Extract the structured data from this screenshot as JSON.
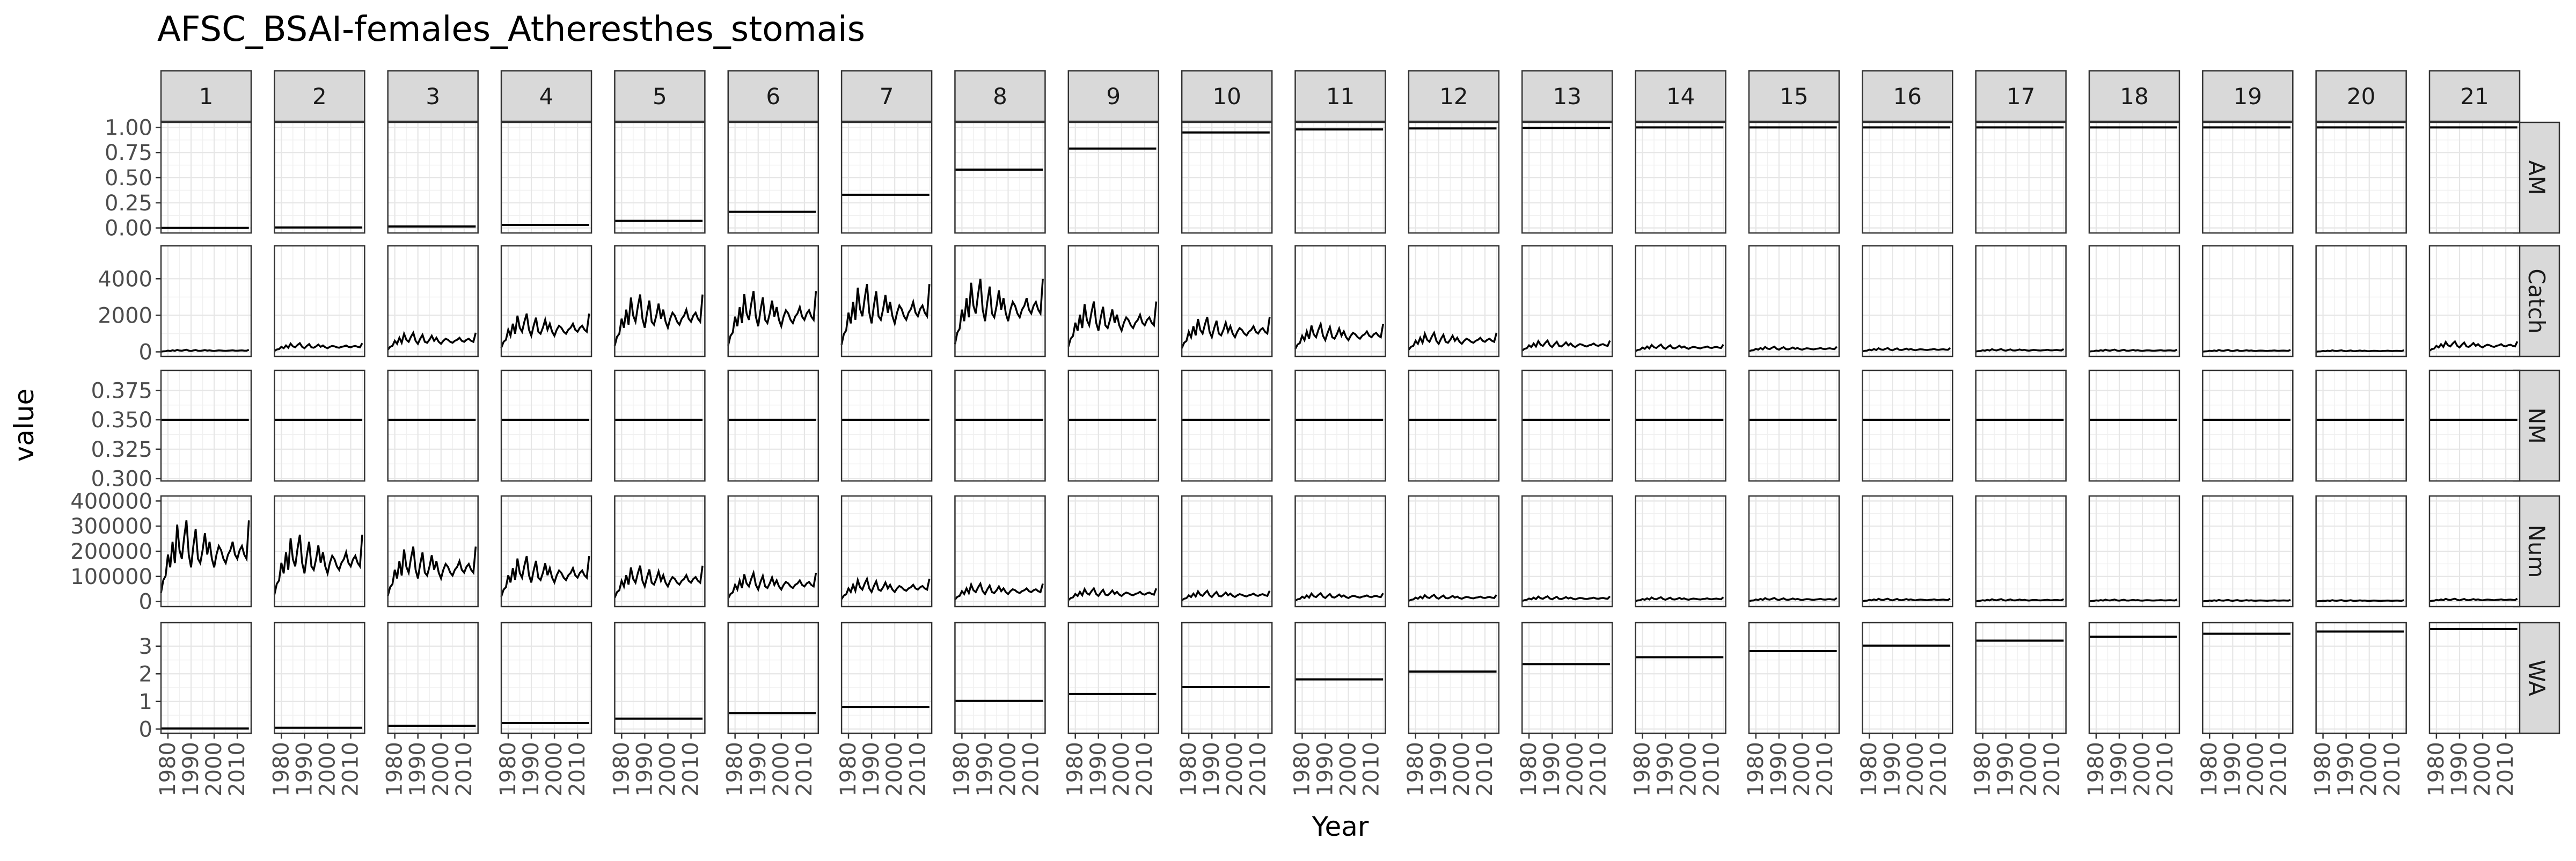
{
  "chart_data": {
    "type": "line",
    "title": "AFSC_BSAI-females_Atheresthes_stomais",
    "xlabel": "Year",
    "ylabel": "value",
    "x_range": [
      1977,
      2016
    ],
    "x_ticks": [
      1980,
      1990,
      2000,
      2010
    ],
    "grid": true,
    "facets": {
      "columns": [
        "1",
        "2",
        "3",
        "4",
        "5",
        "6",
        "7",
        "8",
        "9",
        "10",
        "11",
        "12",
        "13",
        "14",
        "15",
        "16",
        "17",
        "18",
        "19",
        "20",
        "21"
      ],
      "rows": [
        {
          "name": "AM",
          "kind": "const",
          "ylim": [
            -0.05,
            1.05
          ],
          "ticks": [
            0,
            0.25,
            0.5,
            0.75,
            1
          ],
          "tick_labels": [
            "0.00",
            "0.25",
            "0.50",
            "0.75",
            "1.00"
          ],
          "values": [
            0.0,
            0.005,
            0.015,
            0.03,
            0.07,
            0.16,
            0.33,
            0.58,
            0.79,
            0.95,
            0.98,
            0.99,
            0.995,
            1.0,
            1.0,
            1.0,
            1.0,
            1.0,
            1.0,
            1.0,
            1.0
          ]
        },
        {
          "name": "Catch",
          "kind": "series",
          "ylim": [
            -250,
            5800
          ],
          "ticks": [
            0,
            2000,
            4000
          ],
          "tick_labels": [
            "0",
            "2000",
            "4000"
          ],
          "scale": [
            120,
            500,
            1100,
            2200,
            3300,
            3500,
            3900,
            4200,
            2900,
            2000,
            1600,
            1100,
            650,
            420,
            300,
            220,
            160,
            130,
            110,
            90,
            600
          ]
        },
        {
          "name": "NM",
          "kind": "const",
          "ylim": [
            0.298,
            0.392
          ],
          "ticks": [
            0.3,
            0.325,
            0.35,
            0.375
          ],
          "tick_labels": [
            "0.300",
            "0.325",
            "0.350",
            "0.375"
          ],
          "values": [
            0.35,
            0.35,
            0.35,
            0.35,
            0.35,
            0.35,
            0.35,
            0.35,
            0.35,
            0.35,
            0.35,
            0.35,
            0.35,
            0.35,
            0.35,
            0.35,
            0.35,
            0.35,
            0.35,
            0.35,
            0.35
          ]
        },
        {
          "name": "Num",
          "kind": "series",
          "ylim": [
            -20000,
            420000
          ],
          "ticks": [
            0,
            100000,
            200000,
            300000,
            400000
          ],
          "tick_labels": [
            "0",
            "100000",
            "200000",
            "300000",
            "400000"
          ],
          "scale": [
            340000,
            280000,
            230000,
            190000,
            150000,
            120000,
            95000,
            75000,
            55000,
            45000,
            35000,
            28000,
            22000,
            18000,
            15000,
            12000,
            10000,
            8500,
            7000,
            6000,
            12000
          ]
        },
        {
          "name": "WA",
          "kind": "const",
          "ylim": [
            -0.15,
            3.85
          ],
          "ticks": [
            0,
            1,
            2,
            3
          ],
          "tick_labels": [
            "0",
            "1",
            "2",
            "3"
          ],
          "values": [
            0.02,
            0.05,
            0.12,
            0.22,
            0.38,
            0.58,
            0.8,
            1.02,
            1.27,
            1.52,
            1.8,
            2.08,
            2.35,
            2.6,
            2.82,
            3.02,
            3.2,
            3.34,
            3.45,
            3.53,
            3.62
          ]
        }
      ]
    },
    "series_shape": [
      0.1,
      0.25,
      0.3,
      0.55,
      0.4,
      0.7,
      0.45,
      0.9,
      0.6,
      0.5,
      0.75,
      0.95,
      0.55,
      0.4,
      0.65,
      0.85,
      0.5,
      0.45,
      0.6,
      0.8,
      0.55,
      0.7,
      0.5,
      0.4,
      0.55,
      0.65,
      0.6,
      0.5,
      0.45,
      0.55,
      0.6,
      0.7,
      0.55,
      0.5,
      0.6,
      0.65,
      0.55,
      0.5,
      0.95
    ]
  }
}
